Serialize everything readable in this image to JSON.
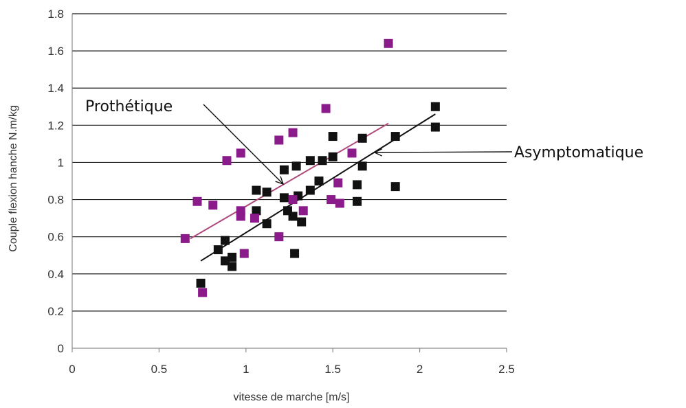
{
  "chart_data": {
    "type": "scatter",
    "title": "",
    "xlabel": "vitesse de marche [m/s]",
    "ylabel": "Couple flexion hanche N.m/kg",
    "xlim": [
      0,
      2.5
    ],
    "ylim": [
      0,
      1.8
    ],
    "x_ticks": [
      "0",
      "0.5",
      "1",
      "1.5",
      "2",
      "2.5"
    ],
    "y_ticks": [
      "0",
      "0.2",
      "0.4",
      "0.6",
      "0.8",
      "1",
      "1.2",
      "1.4",
      "1.6",
      "1.8"
    ],
    "grid": "horizontal",
    "series": [
      {
        "name": "Asymptomatique",
        "marker": "square",
        "color": "#111111",
        "points": [
          [
            0.74,
            0.35
          ],
          [
            0.84,
            0.53
          ],
          [
            0.88,
            0.47
          ],
          [
            0.88,
            0.58
          ],
          [
            0.92,
            0.44
          ],
          [
            0.92,
            0.49
          ],
          [
            1.06,
            0.74
          ],
          [
            1.06,
            0.85
          ],
          [
            1.12,
            0.67
          ],
          [
            1.12,
            0.84
          ],
          [
            1.22,
            0.81
          ],
          [
            1.22,
            0.96
          ],
          [
            1.24,
            0.74
          ],
          [
            1.27,
            0.71
          ],
          [
            1.28,
            0.51
          ],
          [
            1.29,
            0.98
          ],
          [
            1.3,
            0.82
          ],
          [
            1.32,
            0.68
          ],
          [
            1.37,
            0.85
          ],
          [
            1.37,
            1.01
          ],
          [
            1.42,
            0.9
          ],
          [
            1.44,
            1.01
          ],
          [
            1.5,
            1.14
          ],
          [
            1.5,
            1.03
          ],
          [
            1.64,
            0.79
          ],
          [
            1.64,
            0.88
          ],
          [
            1.67,
            1.13
          ],
          [
            1.67,
            0.98
          ],
          [
            1.86,
            1.14
          ],
          [
            1.86,
            0.87
          ],
          [
            2.09,
            1.3
          ],
          [
            2.09,
            1.19
          ]
        ],
        "trend": [
          [
            0.74,
            0.47
          ],
          [
            2.09,
            1.26
          ]
        ]
      },
      {
        "name": "Prothétique",
        "marker": "square",
        "color": "#8b1a8b",
        "points": [
          [
            0.65,
            0.59
          ],
          [
            0.72,
            0.79
          ],
          [
            0.75,
            0.3
          ],
          [
            0.81,
            0.77
          ],
          [
            0.89,
            1.01
          ],
          [
            0.97,
            0.71
          ],
          [
            0.97,
            0.74
          ],
          [
            0.97,
            1.05
          ],
          [
            0.99,
            0.51
          ],
          [
            1.05,
            0.7
          ],
          [
            1.19,
            0.6
          ],
          [
            1.19,
            1.12
          ],
          [
            1.27,
            0.8
          ],
          [
            1.27,
            1.16
          ],
          [
            1.33,
            0.74
          ],
          [
            1.46,
            1.29
          ],
          [
            1.49,
            0.8
          ],
          [
            1.53,
            0.89
          ],
          [
            1.54,
            0.78
          ],
          [
            1.61,
            1.05
          ],
          [
            1.82,
            1.64
          ]
        ],
        "trend": [
          [
            0.68,
            0.59
          ],
          [
            1.82,
            1.21
          ]
        ]
      }
    ],
    "annotations": [
      {
        "text": "Prothétique",
        "target_series": "Prothétique"
      },
      {
        "text": "Asymptomatique",
        "target_series": "Asymptomatique"
      }
    ]
  }
}
